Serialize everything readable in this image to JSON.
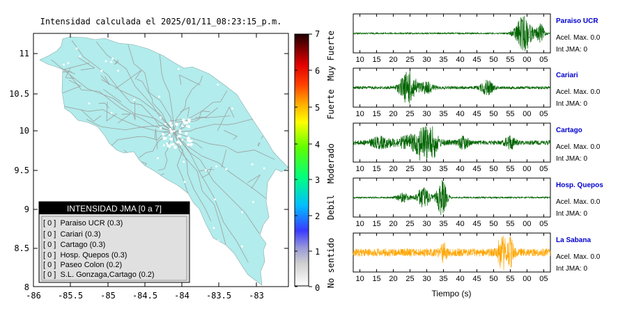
{
  "map": {
    "title": "Intensidad calculada el 2025/01/11_08:23:15_p.m.",
    "lon_ticks": [
      "-86",
      "-85.5",
      "-85",
      "-84.5",
      "-84",
      "-83.5",
      "-83"
    ],
    "lat_ticks": [
      "11",
      "10.5",
      "10",
      "9.5",
      "9",
      "8.5",
      "8"
    ],
    "land_color": "#b2ecec",
    "legend_title": "INTENSIDAD JMA [0 a 7]",
    "legend_items": [
      {
        "text": "[ 0 ]  Paraiso UCR (0.3)"
      },
      {
        "text": "[ 0 ]  Cariari (0.3)"
      },
      {
        "text": "[ 0 ]  Cartago (0.3)"
      },
      {
        "text": "[ 0 ]  Hosp. Quepos (0.3)"
      },
      {
        "text": "[ 0 ]  Paseo Colon (0.2)"
      },
      {
        "text": "[ 0 ]  S.L. Gonzaga,Cartago (0.2)"
      }
    ]
  },
  "colorbar": {
    "ticks": [
      "7",
      "6",
      "5",
      "4",
      "3",
      "2",
      "1",
      "0"
    ],
    "labels": [
      "Muy Fuerte",
      "Fuerte",
      "Moderado",
      "Debil",
      "No sentido"
    ]
  },
  "chart_data": {
    "type": "line",
    "xlabel": "Tiempo (s)",
    "x_ticks": [
      "10",
      "15",
      "20",
      "25",
      "30",
      "35",
      "40",
      "45",
      "50",
      "55",
      "00",
      "05"
    ],
    "stations": [
      {
        "name": "Paraiso UCR",
        "accel": "Acel. Max. 0.0",
        "int": "Int JMA: 0",
        "color": "#006400",
        "bursts": [
          [
            59,
            2.5,
            1.0
          ],
          [
            64,
            1.2,
            0.5
          ]
        ],
        "noise": 0.04
      },
      {
        "name": "Cariari",
        "accel": "Acel. Max. 0.0",
        "int": "Int JMA: 0",
        "color": "#006400",
        "bursts": [
          [
            24.5,
            2.5,
            0.9
          ],
          [
            48,
            1.8,
            0.4
          ],
          [
            30,
            2,
            0.3
          ]
        ],
        "noise": 0.08
      },
      {
        "name": "Cartago",
        "accel": "Acel. Max. 0.0",
        "int": "Int JMA: 0",
        "color": "#006400",
        "bursts": [
          [
            29,
            1.5,
            1.0
          ],
          [
            27,
            6,
            0.4
          ],
          [
            32,
            1.2,
            0.6
          ],
          [
            41,
            1.5,
            0.35
          ],
          [
            55,
            1.5,
            0.35
          ],
          [
            16,
            3,
            0.25
          ]
        ],
        "noise": 0.12
      },
      {
        "name": "Hosp. Quepos",
        "accel": "Acel. Max. 0.0",
        "int": "Int JMA: 0",
        "color": "#006400",
        "bursts": [
          [
            34.5,
            1.5,
            1.0
          ],
          [
            29,
            2,
            0.6
          ],
          [
            23,
            2,
            0.25
          ]
        ],
        "noise": 0.04
      },
      {
        "name": "La Sabana",
        "accel": "Acel. Max. 0.0",
        "int": "Int JMA: 0",
        "color": "#ffa500",
        "bursts": [
          [
            52.5,
            1.2,
            1.0
          ],
          [
            55,
            1.0,
            0.7
          ],
          [
            35,
            1.0,
            0.4
          ]
        ],
        "noise": 0.22
      }
    ]
  }
}
